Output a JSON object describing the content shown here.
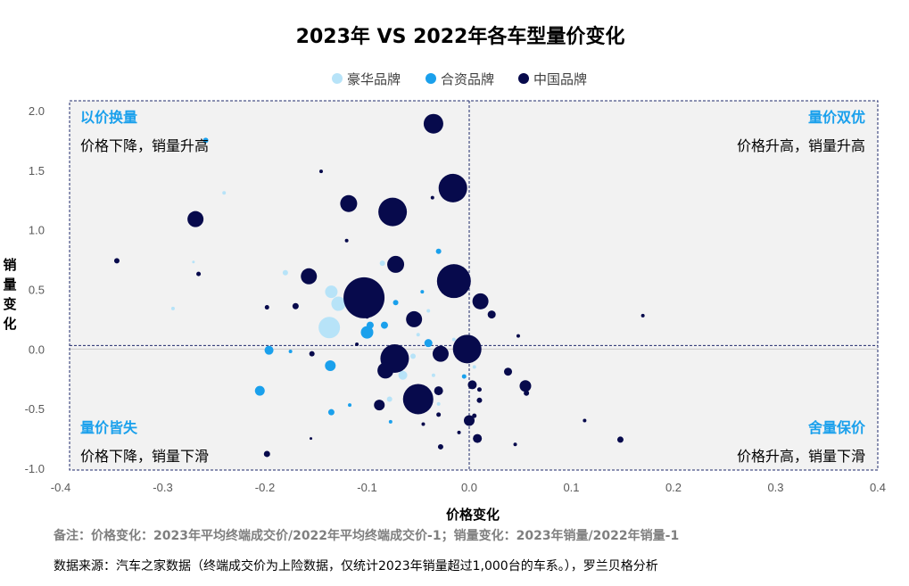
{
  "chart_data": {
    "type": "scatter",
    "title": "2023年 VS 2022年各车型量价变化",
    "xlabel": "价格变化",
    "ylabel": "销量变化",
    "xlim": [
      -0.4,
      0.4
    ],
    "ylim": [
      -1.0,
      2.0
    ],
    "x_ticks": [
      "-0.4",
      "-0.3",
      "-0.2",
      "-0.1",
      "0.0",
      "0.1",
      "0.2",
      "0.3",
      "0.4"
    ],
    "y_ticks": [
      "2.0",
      "1.5",
      "1.0",
      "0.5",
      "0.0",
      "-0.5",
      "-1.0"
    ],
    "reference_lines": {
      "x": 0.0,
      "y": 0.03
    },
    "legend_position": "top",
    "colors": {
      "豪华品牌": "#b7e3f8",
      "合资品牌": "#1aa0ec",
      "中国品牌": "#070a4c"
    },
    "quadrants": [
      {
        "title": "以价换量",
        "desc": "价格下降，销量升高",
        "position": "top-left"
      },
      {
        "title": "量价双优",
        "desc": "价格升高，销量升高",
        "position": "top-right"
      },
      {
        "title": "量价皆失",
        "desc": "价格下降，销量下滑",
        "position": "bottom-left"
      },
      {
        "title": "舍量保价",
        "desc": "价格升高，销量下滑",
        "position": "bottom-right"
      }
    ],
    "series": [
      {
        "name": "豪华品牌",
        "color": "#b7e3f8",
        "points": [
          {
            "x": -0.137,
            "y": 0.18,
            "r": 12
          },
          {
            "x": -0.128,
            "y": 0.38,
            "r": 8
          },
          {
            "x": -0.135,
            "y": 0.48,
            "r": 7
          },
          {
            "x": -0.18,
            "y": 0.64,
            "r": 3
          },
          {
            "x": -0.24,
            "y": 1.31,
            "r": 2
          },
          {
            "x": -0.27,
            "y": 0.73,
            "r": 1.5
          },
          {
            "x": -0.29,
            "y": 0.34,
            "r": 2
          },
          {
            "x": -0.085,
            "y": 0.72,
            "r": 3
          },
          {
            "x": -0.065,
            "y": -0.22,
            "r": 5
          },
          {
            "x": -0.078,
            "y": -0.42,
            "r": 3
          },
          {
            "x": -0.05,
            "y": 0.12,
            "r": 2
          },
          {
            "x": -0.055,
            "y": -0.06,
            "r": 3
          },
          {
            "x": -0.035,
            "y": -0.22,
            "r": 2
          },
          {
            "x": -0.04,
            "y": 0.32,
            "r": 2
          },
          {
            "x": -0.015,
            "y": 0.08,
            "r": 2
          },
          {
            "x": 0.005,
            "y": -0.15,
            "r": 2
          },
          {
            "x": -0.03,
            "y": -0.46,
            "r": 2
          },
          {
            "x": -0.1,
            "y": 0.44,
            "r": 4
          }
        ]
      },
      {
        "name": "合资品牌",
        "color": "#1aa0ec",
        "points": [
          {
            "x": -0.1,
            "y": 0.14,
            "r": 7
          },
          {
            "x": -0.097,
            "y": 0.2,
            "r": 4
          },
          {
            "x": -0.083,
            "y": 0.2,
            "r": 4
          },
          {
            "x": -0.136,
            "y": -0.14,
            "r": 6
          },
          {
            "x": -0.205,
            "y": -0.35,
            "r": 5.5
          },
          {
            "x": -0.196,
            "y": -0.01,
            "r": 5
          },
          {
            "x": -0.175,
            "y": -0.02,
            "r": 2
          },
          {
            "x": -0.135,
            "y": -0.53,
            "r": 3.5
          },
          {
            "x": -0.258,
            "y": 1.75,
            "r": 3
          },
          {
            "x": -0.072,
            "y": 0.39,
            "r": 3
          },
          {
            "x": -0.077,
            "y": -0.61,
            "r": 2
          },
          {
            "x": -0.046,
            "y": 0.48,
            "r": 2
          },
          {
            "x": -0.03,
            "y": 0.82,
            "r": 3
          },
          {
            "x": -0.04,
            "y": 0.05,
            "r": 4.5
          },
          {
            "x": -0.005,
            "y": -0.23,
            "r": 2.5
          },
          {
            "x": -0.117,
            "y": -0.47,
            "r": 2
          }
        ]
      },
      {
        "name": "中国品牌",
        "color": "#070a4c",
        "points": [
          {
            "x": -0.103,
            "y": 0.43,
            "r": 23
          },
          {
            "x": -0.075,
            "y": 1.15,
            "r": 16
          },
          {
            "x": -0.016,
            "y": 1.35,
            "r": 16
          },
          {
            "x": -0.015,
            "y": 0.57,
            "r": 19
          },
          {
            "x": -0.035,
            "y": 1.89,
            "r": 11
          },
          {
            "x": -0.073,
            "y": -0.08,
            "r": 16
          },
          {
            "x": -0.05,
            "y": -0.42,
            "r": 17
          },
          {
            "x": -0.002,
            "y": 0.0,
            "r": 16
          },
          {
            "x": -0.118,
            "y": 1.22,
            "r": 9.5
          },
          {
            "x": -0.072,
            "y": 0.71,
            "r": 9.5
          },
          {
            "x": -0.268,
            "y": 1.09,
            "r": 9
          },
          {
            "x": -0.157,
            "y": 0.61,
            "r": 9
          },
          {
            "x": -0.054,
            "y": 0.25,
            "r": 9
          },
          {
            "x": 0.011,
            "y": 0.4,
            "r": 9
          },
          {
            "x": -0.028,
            "y": -0.04,
            "r": 9
          },
          {
            "x": -0.082,
            "y": -0.18,
            "r": 9
          },
          {
            "x": -0.088,
            "y": -0.47,
            "r": 6
          },
          {
            "x": 0.055,
            "y": -0.31,
            "r": 6.5
          },
          {
            "x": 0.0,
            "y": -0.6,
            "r": 6
          },
          {
            "x": 0.003,
            "y": -0.3,
            "r": 5
          },
          {
            "x": -0.03,
            "y": -0.35,
            "r": 5
          },
          {
            "x": 0.022,
            "y": 0.29,
            "r": 4.5
          },
          {
            "x": 0.008,
            "y": -0.75,
            "r": 5
          },
          {
            "x": 0.038,
            "y": -0.19,
            "r": 4.5
          },
          {
            "x": 0.148,
            "y": -0.76,
            "r": 3.5
          },
          {
            "x": -0.345,
            "y": 0.74,
            "r": 3
          },
          {
            "x": -0.265,
            "y": 0.63,
            "r": 2.5
          },
          {
            "x": -0.198,
            "y": 0.35,
            "r": 2.5
          },
          {
            "x": -0.17,
            "y": 0.36,
            "r": 3.5
          },
          {
            "x": -0.198,
            "y": -0.88,
            "r": 3.5
          },
          {
            "x": -0.154,
            "y": -0.04,
            "r": 3
          },
          {
            "x": -0.145,
            "y": 1.49,
            "r": 2
          },
          {
            "x": -0.12,
            "y": 0.91,
            "r": 2
          },
          {
            "x": -0.1,
            "y": 0.27,
            "r": 2
          },
          {
            "x": -0.062,
            "y": -0.38,
            "r": 2
          },
          {
            "x": -0.045,
            "y": -0.63,
            "r": 2
          },
          {
            "x": -0.03,
            "y": -0.55,
            "r": 2.5
          },
          {
            "x": -0.036,
            "y": 1.27,
            "r": 2
          },
          {
            "x": -0.028,
            "y": -0.82,
            "r": 3
          },
          {
            "x": -0.01,
            "y": -0.7,
            "r": 2
          },
          {
            "x": 0.005,
            "y": -0.56,
            "r": 2.5
          },
          {
            "x": 0.01,
            "y": -0.34,
            "r": 2.5
          },
          {
            "x": 0.01,
            "y": -0.43,
            "r": 3
          },
          {
            "x": 0.045,
            "y": -0.8,
            "r": 2
          },
          {
            "x": 0.048,
            "y": 0.11,
            "r": 2
          },
          {
            "x": 0.113,
            "y": -0.6,
            "r": 2
          },
          {
            "x": 0.17,
            "y": 0.28,
            "r": 2
          },
          {
            "x": 0.056,
            "y": -0.37,
            "r": 3
          },
          {
            "x": -0.155,
            "y": -0.75,
            "r": 1.5
          },
          {
            "x": -0.11,
            "y": 0.04,
            "r": 2
          }
        ]
      }
    ]
  },
  "notes": {
    "definition": "备注：价格变化：2023年平均终端成交价/2022年平均终端成交价-1；销量变化：2023年销量/2022年销量-1",
    "source": "数据来源：汽车之家数据（终端成交价为上险数据，仅统计2023年销量超过1,000台的车系。），罗兰贝格分析"
  }
}
